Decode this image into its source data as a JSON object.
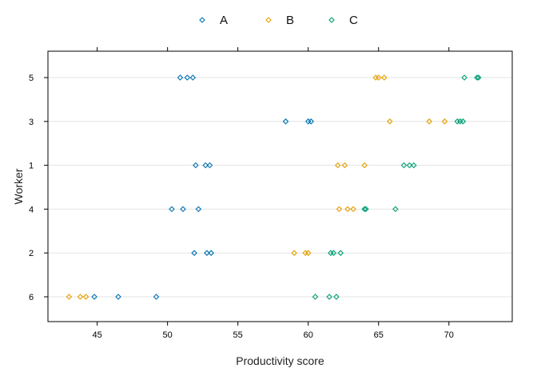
{
  "chart_data": {
    "type": "scatter",
    "subtype": "dotplot",
    "xlabel": "Productivity score",
    "ylabel": "Worker",
    "xlim": [
      41.5,
      74.5
    ],
    "xticks": [
      45,
      50,
      55,
      60,
      65,
      70
    ],
    "categories": [
      "5",
      "3",
      "1",
      "4",
      "2",
      "6"
    ],
    "grid": true,
    "legend_position": "top",
    "series": [
      {
        "name": "A",
        "color": "#0072B2",
        "points": [
          {
            "worker": "5",
            "values": [
              50.9,
              51.4,
              51.8
            ]
          },
          {
            "worker": "3",
            "values": [
              58.4,
              60.0,
              60.2
            ]
          },
          {
            "worker": "1",
            "values": [
              52.0,
              52.7,
              53.0
            ]
          },
          {
            "worker": "4",
            "values": [
              50.3,
              51.1,
              52.2
            ]
          },
          {
            "worker": "2",
            "values": [
              51.9,
              52.8,
              53.1
            ]
          },
          {
            "worker": "6",
            "values": [
              44.8,
              46.5,
              49.2
            ]
          }
        ]
      },
      {
        "name": "B",
        "color": "#E69F00",
        "points": [
          {
            "worker": "5",
            "values": [
              64.8,
              65.0,
              65.4
            ]
          },
          {
            "worker": "3",
            "values": [
              65.8,
              68.6,
              69.7
            ]
          },
          {
            "worker": "1",
            "values": [
              62.1,
              62.6,
              64.0
            ]
          },
          {
            "worker": "4",
            "values": [
              62.2,
              62.8,
              63.2
            ]
          },
          {
            "worker": "2",
            "values": [
              59.0,
              59.8,
              60.0
            ]
          },
          {
            "worker": "6",
            "values": [
              43.0,
              43.8,
              44.2
            ]
          }
        ]
      },
      {
        "name": "C",
        "color": "#009E73",
        "points": [
          {
            "worker": "5",
            "values": [
              71.1,
              72.0,
              72.1
            ]
          },
          {
            "worker": "3",
            "values": [
              70.6,
              70.8,
              71.0
            ]
          },
          {
            "worker": "1",
            "values": [
              66.8,
              67.2,
              67.5
            ]
          },
          {
            "worker": "4",
            "values": [
              64.0,
              64.1,
              66.2
            ]
          },
          {
            "worker": "2",
            "values": [
              61.6,
              61.8,
              62.3
            ]
          },
          {
            "worker": "6",
            "values": [
              60.5,
              61.5,
              62.0
            ]
          }
        ]
      }
    ]
  }
}
